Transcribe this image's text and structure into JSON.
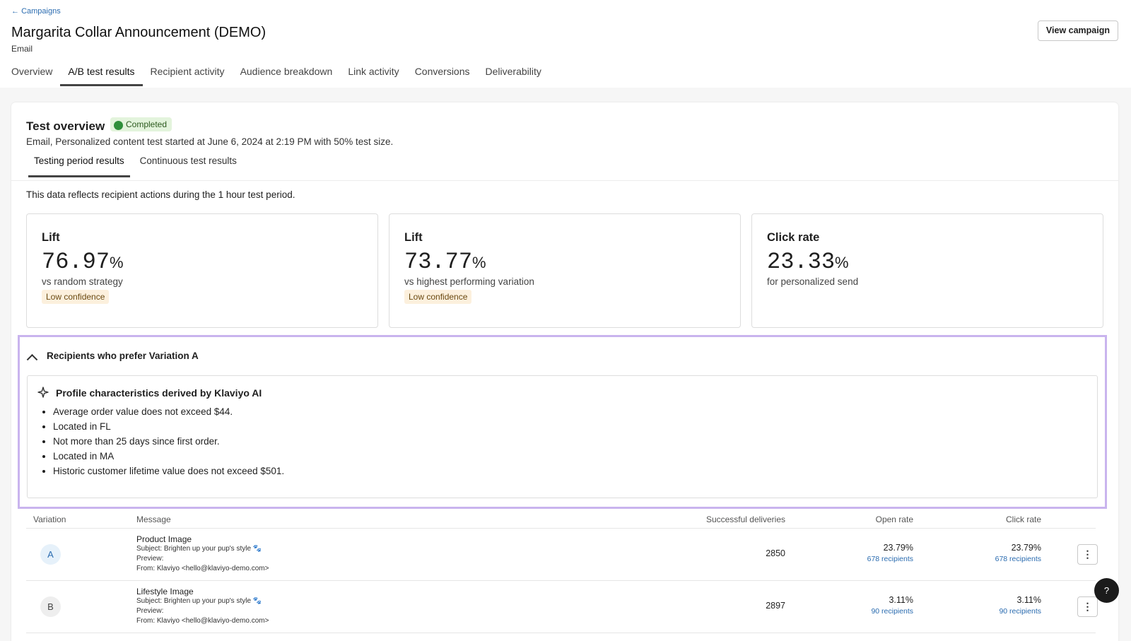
{
  "breadcrumb": "Campaigns",
  "header": {
    "title": "Margarita Collar Announcement (DEMO)",
    "subtitle": "Email",
    "button": "View campaign"
  },
  "tabs": [
    "Overview",
    "A/B test results",
    "Recipient activity",
    "Audience breakdown",
    "Link activity",
    "Conversions",
    "Deliverability"
  ],
  "active_tab": 1,
  "test_overview": {
    "title": "Test overview",
    "status": "Completed",
    "description": "Email, Personalized content test started at June 6, 2024 at 2:19 PM with 50% test size.",
    "subtabs": [
      "Testing period results",
      "Continuous test results"
    ],
    "active_subtab": 0,
    "note": "This data reflects recipient actions during the 1 hour test period."
  },
  "metrics": [
    {
      "label": "Lift",
      "value": 76.97,
      "unit": "%",
      "caption": "vs random strategy",
      "badge": "Low confidence"
    },
    {
      "label": "Lift",
      "value": 73.77,
      "unit": "%",
      "caption": "vs highest performing variation",
      "badge": "Low confidence"
    },
    {
      "label": "Click rate",
      "value": 23.33,
      "unit": "%",
      "caption": "for personalized send"
    }
  ],
  "segment": {
    "title": "Recipients who prefer Variation A",
    "ai_title": "Profile characteristics derived by Klaviyo AI",
    "items": [
      "Average order value does not exceed $44.",
      "Located in FL",
      "Not more than 25 days since first order.",
      "Located in MA",
      "Historic customer lifetime value does not exceed $501."
    ]
  },
  "table": {
    "columns": [
      "Variation",
      "Message",
      "Successful deliveries",
      "Open rate",
      "Click rate"
    ],
    "rows": [
      {
        "variation": "A",
        "message": "Product Image",
        "subject": "Subject: Brighten up your pup's style 🐾",
        "preview": "Preview:",
        "from": "From: Klaviyo <hello@klaviyo-demo.com>",
        "deliveries": 2850,
        "open_rate": "23.79%",
        "open_recipients": "678 recipients",
        "click_rate": "23.79%",
        "click_recipients": "678 recipients"
      },
      {
        "variation": "B",
        "message": "Lifestyle Image",
        "subject": "Subject: Brighten up your pup's style 🐾",
        "preview": "Preview:",
        "from": "From: Klaviyo <hello@klaviyo-demo.com>",
        "deliveries": 2897,
        "open_rate": "3.11%",
        "open_recipients": "90 recipients",
        "click_rate": "3.11%",
        "click_recipients": "90 recipients"
      }
    ]
  },
  "help": "?"
}
